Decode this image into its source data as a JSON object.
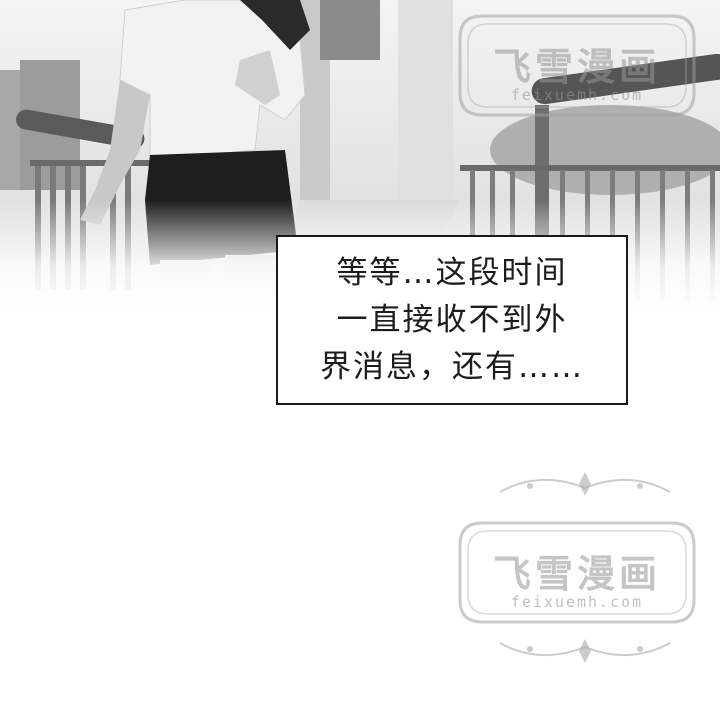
{
  "speech_bubble": {
    "lines": [
      "等等…这段时间",
      "一直接收不到外",
      "界消息，还有……"
    ]
  },
  "watermark": {
    "title": "飞雪漫画",
    "url": "feixuemh.com"
  },
  "colors": {
    "background": "#ffffff",
    "bubble_border": "#1a1a1a",
    "text": "#1c1c1c",
    "watermark": "#969696"
  }
}
